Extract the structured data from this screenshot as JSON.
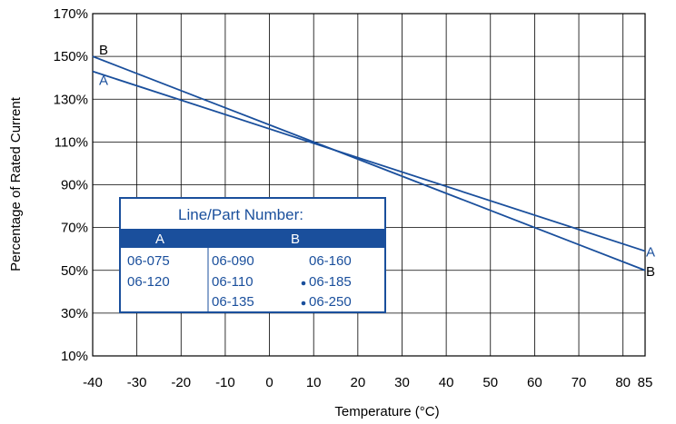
{
  "chart_data": {
    "type": "line",
    "xlabel": "Temperature (°C)",
    "ylabel": "Percentage of Rated Current",
    "xlim": [
      -40,
      85
    ],
    "ylim": [
      10,
      170
    ],
    "x_ticks": [
      -40,
      -30,
      -20,
      -10,
      0,
      10,
      20,
      30,
      40,
      50,
      60,
      70,
      80,
      85
    ],
    "x_tick_labels": [
      "-40",
      "-30",
      "-20",
      "-10",
      "0",
      "10",
      "20",
      "30",
      "40",
      "50",
      "60",
      "70",
      "80",
      "85"
    ],
    "y_ticks": [
      10,
      30,
      50,
      70,
      90,
      110,
      130,
      150,
      170
    ],
    "y_tick_labels": [
      "10%",
      "30%",
      "50%",
      "70%",
      "90%",
      "110%",
      "130%",
      "150%",
      "170%"
    ],
    "grid": true,
    "series": [
      {
        "name": "A",
        "x": [
          -40,
          85
        ],
        "y": [
          143,
          59
        ],
        "label_left": "A",
        "label_right": "A",
        "label_color": "#1a4f9c"
      },
      {
        "name": "B",
        "x": [
          -40,
          85
        ],
        "y": [
          150,
          50
        ],
        "label_left": "B",
        "label_right": "B",
        "label_color": "#000000"
      }
    ],
    "line_color": "#1a4f9c",
    "legend": {
      "title": "Line/Part Number:",
      "header_a": "A",
      "header_b": "B",
      "col_a": [
        "06-075",
        "06-120"
      ],
      "col_b1": [
        "06-090",
        "06-110",
        "06-135"
      ],
      "col_b2": [
        "06-160",
        "06-185",
        "06-250"
      ],
      "col_b2_bullets": [
        false,
        true,
        true
      ],
      "accent": "#1a4f9c"
    }
  }
}
